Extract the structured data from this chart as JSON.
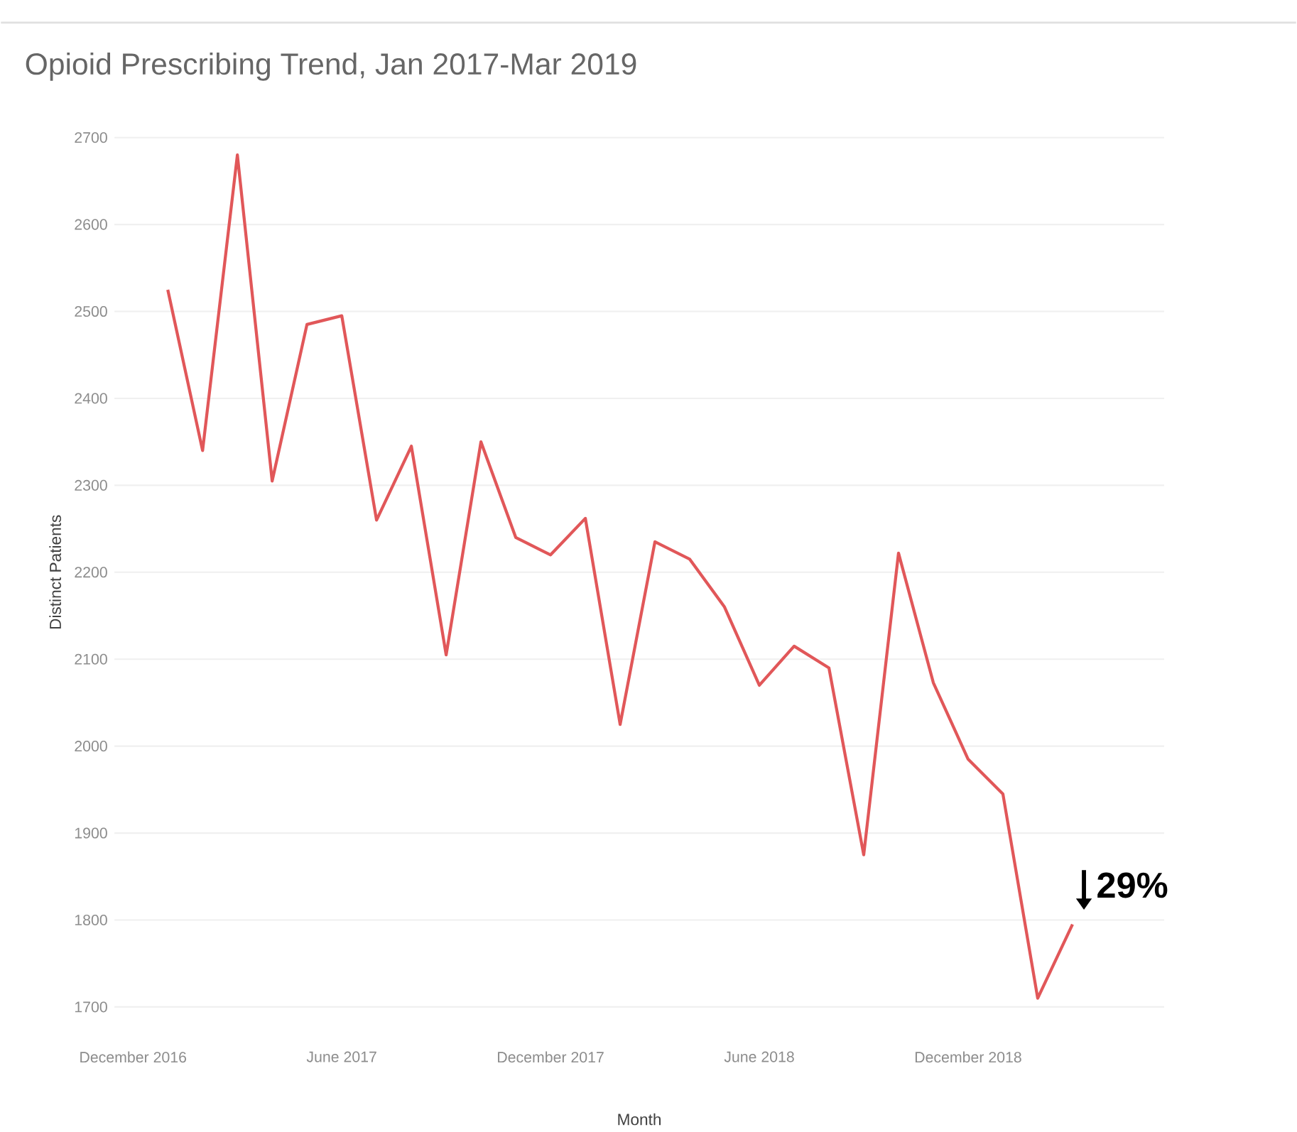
{
  "chart_data": {
    "type": "line",
    "title": "Opioid Prescribing Trend, Jan 2017-Mar 2019",
    "xlabel": "Month",
    "ylabel": "Distinct Patients",
    "x": [
      "2017-01",
      "2017-02",
      "2017-03",
      "2017-04",
      "2017-05",
      "2017-06",
      "2017-07",
      "2017-08",
      "2017-09",
      "2017-10",
      "2017-11",
      "2017-12",
      "2018-01",
      "2018-02",
      "2018-03",
      "2018-04",
      "2018-05",
      "2018-06",
      "2018-07",
      "2018-08",
      "2018-09",
      "2018-10",
      "2018-11",
      "2018-12",
      "2019-01",
      "2019-02",
      "2019-03"
    ],
    "series": [
      {
        "color": "#e15759",
        "values": [
          2525,
          2340,
          2680,
          2305,
          2485,
          2495,
          2260,
          2345,
          2105,
          2350,
          2240,
          2220,
          2262,
          2025,
          2235,
          2215,
          2160,
          2070,
          2115,
          2090,
          1875,
          2222,
          2073,
          1985,
          1945,
          1710,
          1795
        ]
      }
    ],
    "xlim": [
      "2016-11-15",
      "2019-05-20"
    ],
    "xticks": [
      {
        "value": "2016-12",
        "label": "December 2016"
      },
      {
        "value": "2017-06",
        "label": "June 2017"
      },
      {
        "value": "2017-12",
        "label": "December 2017"
      },
      {
        "value": "2018-06",
        "label": "June 2018"
      },
      {
        "value": "2018-12",
        "label": "December 2018"
      }
    ],
    "ylim": [
      1700,
      2700
    ],
    "yticks": [
      1700,
      1800,
      1900,
      2000,
      2100,
      2200,
      2300,
      2400,
      2500,
      2600,
      2700
    ],
    "grid": "y",
    "line_style": "solid",
    "marker": "none",
    "annotations": [
      "29%"
    ]
  }
}
